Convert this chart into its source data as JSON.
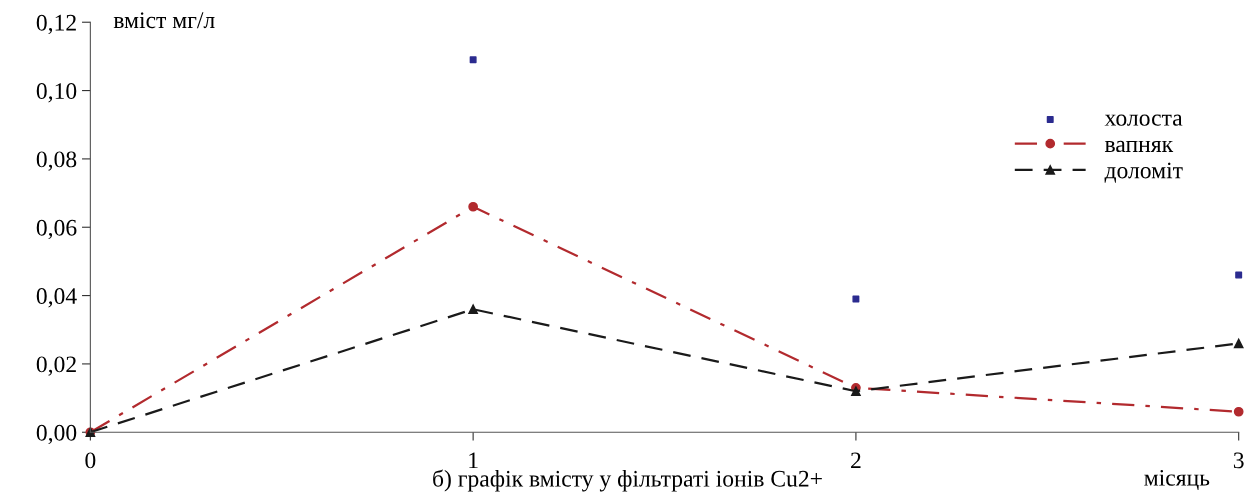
{
  "chart_data": {
    "type": "line",
    "title": "б) графік вмісту у фільтраті іонів Cu2+",
    "xlabel": "місяць",
    "ylabel": "вміст мг/л",
    "x": [
      0,
      1,
      2,
      3
    ],
    "xlim": [
      0,
      3
    ],
    "xticks": [
      0,
      1,
      2,
      3
    ],
    "ylim": [
      0,
      0.12
    ],
    "yticks": [
      {
        "value": 0,
        "label": "0,00"
      },
      {
        "value": 0.02,
        "label": "0,02"
      },
      {
        "value": 0.04,
        "label": "0,04"
      },
      {
        "value": 0.06,
        "label": "0,06"
      },
      {
        "value": 0.08,
        "label": "0,08"
      },
      {
        "value": 0.1,
        "label": "0,10"
      },
      {
        "value": 0.12,
        "label": "0,12"
      }
    ],
    "grid": false,
    "legend": "top right",
    "series": [
      {
        "name": "холоста",
        "type": "scatter",
        "color": "#2b2b8f",
        "marker": "square",
        "values": [
          null,
          0.109,
          0.039,
          0.046
        ]
      },
      {
        "name": "вапняк",
        "color": "#b22a2e",
        "marker": "circle",
        "line_style": "dashdot",
        "values": [
          0,
          0.066,
          0.013,
          0.006
        ]
      },
      {
        "name": "доломіт",
        "color": "#1a1a1a",
        "marker": "triangle",
        "line_style": "dashed",
        "values": [
          0,
          0.036,
          0.012,
          0.026
        ]
      }
    ]
  }
}
